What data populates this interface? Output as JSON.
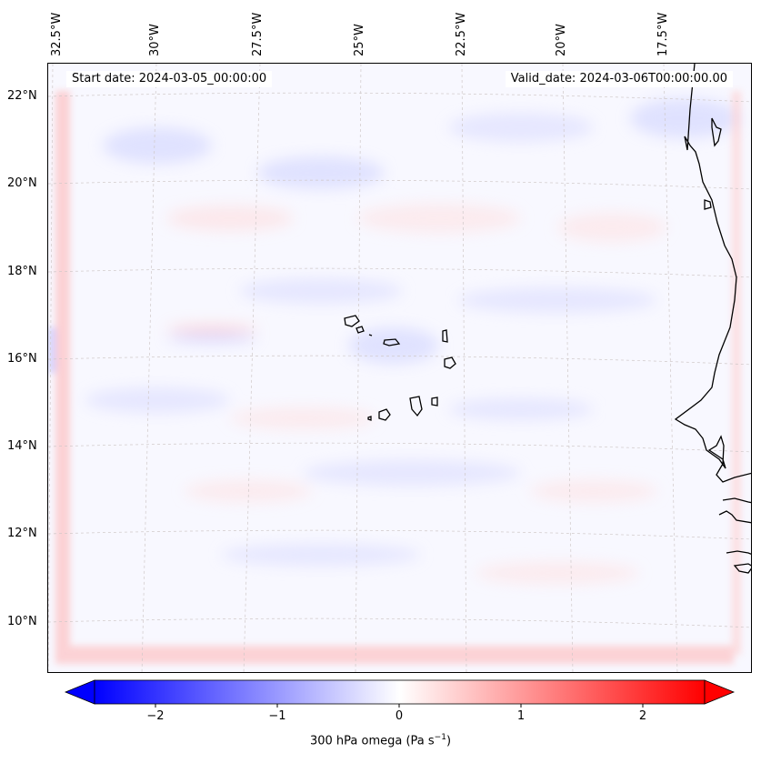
{
  "map": {
    "start_date": "Start date: 2024-03-05_00:00:00",
    "valid_date": "Valid_date: 2024-03-06T00:00:00.00",
    "lon_labels": [
      "32.5°W",
      "30°W",
      "27.5°W",
      "25°W",
      "22.5°W",
      "20°W",
      "17.5°W"
    ],
    "lat_labels": [
      "22°N",
      "20°N",
      "18°N",
      "16°N",
      "14°N",
      "12°N",
      "10°N"
    ]
  },
  "colorbar": {
    "label": "300 hPa omega (Pa s",
    "label_sup": "−1",
    "label_end": ")",
    "ticks": [
      "−2",
      "−1",
      "0",
      "1",
      "2"
    ],
    "colormap": "bwr",
    "range": [
      -2.5,
      2.5
    ],
    "extend": "both",
    "colors": {
      "neg": "#0000ff",
      "mid": "#ffffff",
      "pos": "#ff0000"
    }
  }
}
